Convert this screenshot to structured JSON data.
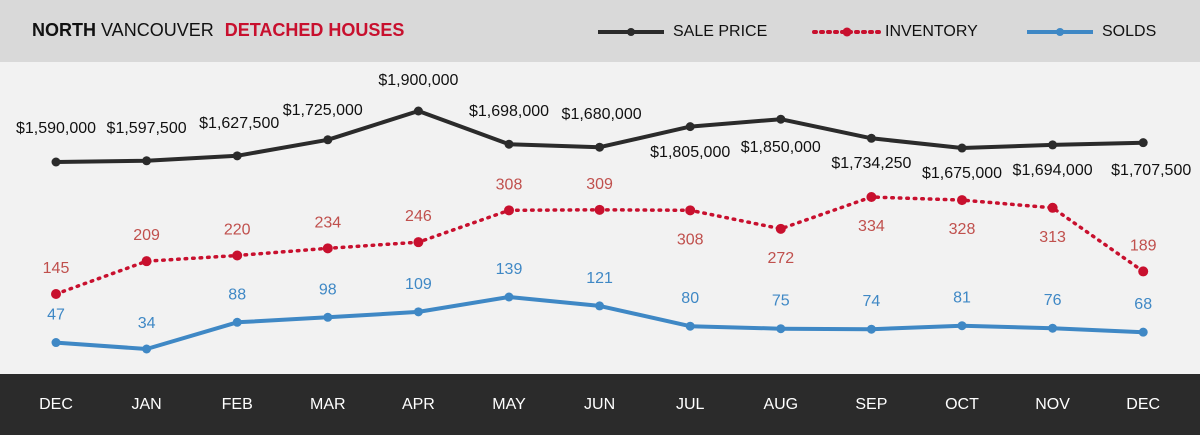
{
  "title": {
    "bold": "NORTH",
    "regular": "VANCOUVER",
    "accent": "DETACHED HOUSES"
  },
  "legend": [
    {
      "label": "SALE PRICE",
      "color": "#2b2b2b",
      "style": "solid"
    },
    {
      "label": "INVENTORY",
      "color": "#c8102e",
      "style": "dotted"
    },
    {
      "label": "SOLDS",
      "color": "#3f88c5",
      "style": "solid"
    }
  ],
  "chart_data": {
    "type": "line",
    "categories": [
      "DEC",
      "JAN",
      "FEB",
      "MAR",
      "APR",
      "MAY",
      "JUN",
      "JUL",
      "AUG",
      "SEP",
      "OCT",
      "NOV",
      "DEC"
    ],
    "series": [
      {
        "name": "SALE PRICE",
        "color": "#2b2b2b",
        "values": [
          1590000,
          1597500,
          1627500,
          1725000,
          1900000,
          1698000,
          1680000,
          1805000,
          1850000,
          1734250,
          1675000,
          1694000,
          1707500
        ],
        "labels": [
          "$1,590,000",
          "$1,597,500",
          "$1,627,500",
          "$1,725,000",
          "$1,900,000",
          "$1,698,000",
          "$1,680,000",
          "$1,805,000",
          "$1,850,000",
          "$1,734,250",
          "$1,675,000",
          "$1,694,000",
          "$1,707,500"
        ]
      },
      {
        "name": "INVENTORY",
        "color": "#c8102e",
        "label_color": "#c0504d",
        "values": [
          145,
          209,
          220,
          234,
          246,
          308,
          309,
          308,
          272,
          334,
          328,
          313,
          189
        ]
      },
      {
        "name": "SOLDS",
        "color": "#3f88c5",
        "label_color": "#3f88c5",
        "values": [
          47,
          34,
          88,
          98,
          109,
          139,
          121,
          80,
          75,
          74,
          81,
          76,
          68
        ]
      }
    ]
  }
}
